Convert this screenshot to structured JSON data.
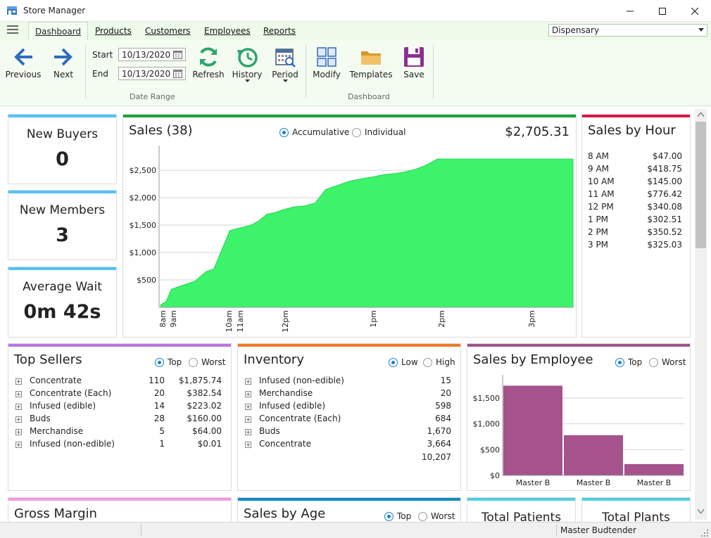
{
  "window": {
    "title": "Store Manager"
  },
  "tabs": {
    "dashboard": "Dashboard",
    "products": "Products",
    "customers": "Customers",
    "employees": "Employees",
    "reports": "Reports"
  },
  "location": "Dispensary",
  "ribbon": {
    "previous": "Previous",
    "next": "Next",
    "start_label": "Start",
    "end_label": "End",
    "start_date": "10/13/2020",
    "end_date": "10/13/2020",
    "refresh": "Refresh",
    "history": "History",
    "period": "Period",
    "date_range_group": "Date Range",
    "modify": "Modify",
    "templates": "Templates",
    "save": "Save",
    "dashboard_group": "Dashboard"
  },
  "stats": {
    "new_buyers": {
      "label": "New Buyers",
      "value": "0"
    },
    "new_members": {
      "label": "New Members",
      "value": "3"
    },
    "average_wait": {
      "label": "Average Wait",
      "value": "0m 42s"
    }
  },
  "sales": {
    "title": "Sales (38)",
    "total": "$2,705.31",
    "opt1": "Accumulative",
    "opt2": "Individual"
  },
  "chart_data": {
    "type": "area",
    "title": "Sales (38)",
    "y_ticks": [
      "$500",
      "$1,000",
      "$1,500",
      "$2,000",
      "$2,500"
    ],
    "ylim": [
      0,
      2950
    ],
    "x_ticks": [
      "8am",
      "9am",
      "10am",
      "11am",
      "12pm",
      "1pm",
      "2pm",
      "3pm"
    ],
    "x": [
      8.0,
      8.1,
      8.2,
      8.35,
      8.5,
      8.65,
      8.85,
      9.0,
      9.3,
      9.5,
      9.7,
      9.85,
      10.0,
      10.15,
      10.3,
      10.5,
      10.7,
      10.9,
      11.1,
      11.25,
      11.4,
      11.55,
      11.8,
      12.0,
      12.2,
      12.4,
      12.6,
      12.8,
      13.0,
      13.2,
      13.4,
      13.6,
      13.8,
      14.0,
      14.2,
      14.4,
      14.6,
      14.8,
      15.0,
      15.2,
      15.4,
      15.6,
      15.75
    ],
    "y": [
      50,
      100,
      330,
      380,
      430,
      480,
      650,
      700,
      1400,
      1450,
      1500,
      1580,
      1700,
      1730,
      1780,
      1830,
      1850,
      1900,
      2150,
      2200,
      2250,
      2300,
      2350,
      2380,
      2420,
      2440,
      2470,
      2520,
      2600,
      2705,
      2705,
      2705,
      2705,
      2705,
      2705,
      2705,
      2705,
      2705,
      2705,
      2705,
      2705,
      2705,
      2705
    ],
    "color": "#3cf36a"
  },
  "sales_by_hour": {
    "title": "Sales by Hour",
    "rows": [
      {
        "hour": "8 AM",
        "amount": "$47.00"
      },
      {
        "hour": "9 AM",
        "amount": "$418.75"
      },
      {
        "hour": "10 AM",
        "amount": "$145.00"
      },
      {
        "hour": "11 AM",
        "amount": "$776.42"
      },
      {
        "hour": "12 PM",
        "amount": "$340.08"
      },
      {
        "hour": "1 PM",
        "amount": "$302.51"
      },
      {
        "hour": "2 PM",
        "amount": "$350.52"
      },
      {
        "hour": "3 PM",
        "amount": "$325.03"
      }
    ]
  },
  "top_sellers": {
    "title": "Top Sellers",
    "opt1": "Top",
    "opt2": "Worst",
    "rows": [
      {
        "name": "Concentrate",
        "qty": "110",
        "amount": "$1,875.74"
      },
      {
        "name": "Concentrate (Each)",
        "qty": "20",
        "amount": "$382.54"
      },
      {
        "name": "Infused (edible)",
        "qty": "14",
        "amount": "$223.02"
      },
      {
        "name": "Buds",
        "qty": "28",
        "amount": "$160.00"
      },
      {
        "name": "Merchandise",
        "qty": "5",
        "amount": "$64.00"
      },
      {
        "name": "Infused (non-edible)",
        "qty": "1",
        "amount": "$0.01"
      }
    ]
  },
  "inventory": {
    "title": "Inventory",
    "opt1": "Low",
    "opt2": "High",
    "total": "10,207",
    "rows": [
      {
        "name": "Infused (non-edible)",
        "qty": "15"
      },
      {
        "name": "Merchandise",
        "qty": "20"
      },
      {
        "name": "Infused (edible)",
        "qty": "598"
      },
      {
        "name": "Concentrate (Each)",
        "qty": "684"
      },
      {
        "name": "Buds",
        "qty": "1,670"
      },
      {
        "name": "Concentrate",
        "qty": "3,664"
      }
    ]
  },
  "sales_by_employee": {
    "title": "Sales by Employee",
    "opt1": "Top",
    "opt2": "Worst",
    "y_ticks": [
      "$0",
      "$500",
      "$1,000",
      "$1,500"
    ],
    "bars": [
      {
        "label": "Master B",
        "value": 1740
      },
      {
        "label": "Master B",
        "value": 780
      },
      {
        "label": "Master B",
        "value": 220
      }
    ],
    "ymax": 1950,
    "color": "#a5528d"
  },
  "bottom_cards": {
    "gross_margin": "Gross Margin",
    "sales_by_age": "Sales by Age",
    "age_opt1": "Top",
    "age_opt2": "Worst",
    "total_patients": "Total Patients",
    "total_plants": "Total Plants"
  },
  "status": {
    "user": "Master Budtender"
  },
  "colors": {
    "blue": "#4fc3f7",
    "green": "#1aa33a",
    "red": "#d81b47",
    "purple": "#b776e6",
    "orange": "#f07c2c",
    "plum": "#a0548d",
    "pink": "#f39ade",
    "teal": "#0e8bc3",
    "cyan": "#4dd0e1"
  }
}
